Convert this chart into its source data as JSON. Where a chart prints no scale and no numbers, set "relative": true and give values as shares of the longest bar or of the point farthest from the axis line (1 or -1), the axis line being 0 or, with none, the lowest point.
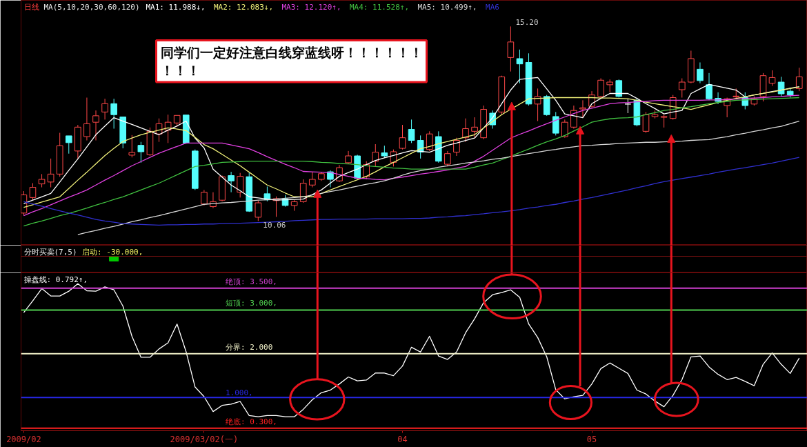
{
  "chart_data": [
    {
      "type": "candlestick",
      "title": "日线",
      "subtitle": "MA(5,10,20,30,60,120)",
      "categories": [
        "2009/02",
        null,
        null,
        null,
        null,
        null,
        null,
        null,
        null,
        null,
        null,
        null,
        null,
        null,
        null,
        null,
        null,
        null,
        null,
        null,
        "2009/03/02(一)",
        null,
        null,
        null,
        null,
        null,
        null,
        null,
        null,
        null,
        null,
        null,
        null,
        null,
        null,
        null,
        null,
        null,
        null,
        null,
        null,
        null,
        "04",
        null,
        null,
        null,
        null,
        null,
        null,
        null,
        null,
        null,
        null,
        null,
        null,
        null,
        null,
        null,
        null,
        null,
        null,
        null,
        null,
        "05",
        null,
        null,
        null,
        null,
        null,
        null,
        null,
        null,
        null,
        null,
        null,
        null,
        null,
        null,
        null,
        null,
        null,
        null,
        null,
        null,
        null,
        null,
        null
      ],
      "ohlc": [
        [
          10.27,
          10.85,
          10.2,
          10.75
        ],
        [
          10.68,
          11.06,
          10.61,
          10.95
        ],
        [
          11.04,
          11.3,
          10.95,
          11.16
        ],
        [
          11.09,
          11.71,
          10.95,
          11.3
        ],
        [
          11.3,
          12.39,
          11.23,
          12.05
        ],
        [
          12.31,
          12.31,
          11.84,
          12.13
        ],
        [
          11.91,
          12.6,
          11.71,
          12.54
        ],
        [
          12.29,
          13.32,
          12.19,
          12.63
        ],
        [
          12.67,
          12.98,
          12.19,
          12.84
        ],
        [
          12.94,
          13.29,
          12.74,
          13.16
        ],
        [
          13.16,
          13.29,
          12.5,
          12.87
        ],
        [
          12.81,
          12.81,
          11.98,
          12.12
        ],
        [
          11.8,
          12.33,
          11.74,
          11.87
        ],
        [
          12.06,
          12.15,
          11.6,
          11.89
        ],
        [
          11.81,
          12.53,
          11.78,
          12.43
        ],
        [
          12.36,
          12.77,
          12.15,
          12.63
        ],
        [
          12.46,
          12.87,
          12.12,
          12.67
        ],
        [
          12.65,
          12.85,
          12.55,
          12.85
        ],
        [
          12.86,
          12.86,
          12.1,
          12.12
        ],
        [
          11.91,
          11.95,
          10.88,
          10.92
        ],
        [
          10.51,
          10.88,
          10.47,
          10.82
        ],
        [
          10.44,
          10.82,
          10.4,
          10.57
        ],
        [
          10.61,
          11.26,
          10.58,
          11.23
        ],
        [
          11.26,
          11.36,
          10.82,
          11.12
        ],
        [
          10.82,
          11.33,
          10.68,
          11.24
        ],
        [
          11.23,
          11.33,
          10.3,
          10.32
        ],
        [
          10.16,
          10.6,
          10.06,
          10.54
        ],
        [
          10.78,
          10.97,
          10.58,
          10.62
        ],
        [
          10.6,
          10.71,
          10.17,
          10.65
        ],
        [
          10.64,
          10.75,
          10.44,
          10.47
        ],
        [
          10.47,
          10.61,
          10.33,
          10.57
        ],
        [
          10.57,
          11.16,
          10.54,
          11.06
        ],
        [
          11.01,
          11.36,
          10.95,
          11.16
        ],
        [
          11.16,
          11.36,
          11.12,
          11.31
        ],
        [
          11.36,
          11.4,
          10.95,
          11.16
        ],
        [
          11.12,
          11.54,
          11.09,
          11.47
        ],
        [
          11.6,
          11.91,
          11.57,
          11.78
        ],
        [
          11.78,
          11.81,
          11.16,
          11.19
        ],
        [
          11.23,
          11.64,
          11.16,
          11.55
        ],
        [
          11.64,
          12.09,
          11.5,
          11.88
        ],
        [
          11.86,
          12.05,
          11.74,
          11.78
        ],
        [
          11.61,
          11.95,
          11.5,
          11.89
        ],
        [
          11.98,
          12.6,
          11.95,
          12.26
        ],
        [
          12.48,
          12.74,
          12.12,
          12.19
        ],
        [
          12.19,
          12.32,
          11.71,
          11.88
        ],
        [
          11.95,
          12.43,
          11.91,
          12.36
        ],
        [
          12.29,
          12.43,
          11.6,
          11.64
        ],
        [
          11.56,
          11.91,
          11.5,
          11.84
        ],
        [
          11.88,
          12.26,
          11.78,
          12.19
        ],
        [
          12.26,
          12.77,
          12.15,
          12.5
        ],
        [
          12.43,
          12.8,
          12.26,
          12.54
        ],
        [
          12.26,
          13.11,
          12.22,
          13.01
        ],
        [
          12.91,
          12.98,
          12.5,
          12.6
        ],
        [
          12.94,
          13.9,
          12.87,
          13.87
        ],
        [
          14.38,
          15.2,
          14.01,
          14.79
        ],
        [
          14.35,
          14.59,
          13.7,
          14.21
        ],
        [
          14.25,
          14.49,
          13.11,
          13.15
        ],
        [
          13.15,
          13.56,
          12.7,
          13.35
        ],
        [
          13.35,
          13.39,
          12.84,
          12.87
        ],
        [
          12.82,
          12.94,
          12.32,
          12.38
        ],
        [
          12.29,
          12.74,
          12.26,
          12.67
        ],
        [
          12.54,
          13.11,
          12.5,
          12.98
        ],
        [
          13.02,
          13.25,
          12.8,
          13.05
        ],
        [
          13.09,
          13.49,
          13.05,
          13.39
        ],
        [
          13.35,
          13.83,
          13.29,
          13.78
        ],
        [
          13.66,
          13.8,
          13.46,
          13.73
        ],
        [
          13.77,
          13.8,
          13.32,
          13.35
        ],
        [
          13.15,
          13.29,
          12.91,
          13.15
        ],
        [
          13.25,
          13.29,
          12.56,
          12.6
        ],
        [
          12.43,
          12.94,
          12.39,
          12.87
        ],
        [
          12.82,
          12.98,
          12.77,
          12.87
        ],
        [
          12.8,
          12.87,
          12.53,
          12.82
        ],
        [
          12.77,
          13.39,
          12.74,
          13.32
        ],
        [
          13.53,
          13.83,
          13.32,
          13.73
        ],
        [
          13.73,
          14.56,
          13.7,
          14.35
        ],
        [
          14.07,
          14.25,
          13.7,
          13.77
        ],
        [
          13.66,
          13.97,
          13.25,
          13.29
        ],
        [
          13.3,
          13.46,
          13.15,
          13.22
        ],
        [
          13.11,
          13.32,
          12.8,
          13.29
        ],
        [
          13.34,
          13.56,
          13.29,
          13.36
        ],
        [
          13.32,
          13.46,
          13.01,
          13.11
        ],
        [
          13.15,
          13.35,
          13.11,
          13.29
        ],
        [
          13.35,
          13.97,
          13.22,
          13.9
        ],
        [
          13.7,
          14.04,
          13.63,
          13.85
        ],
        [
          13.73,
          13.87,
          13.35,
          13.42
        ],
        [
          13.49,
          13.56,
          13.32,
          13.39
        ],
        [
          13.56,
          14.11,
          13.49,
          13.87
        ]
      ],
      "colors": [
        "#ff4848",
        "#ff4848",
        "#ff4848",
        "#ff4848",
        "#ff4848",
        "#54fcfc",
        "#ff4848",
        "#ff4848",
        "#ff4848",
        "#ff4848",
        "#54fcfc",
        "#54fcfc",
        "#ff4848",
        "#54fcfc",
        "#ff4848",
        "#ff4848",
        "#ff4848",
        "#ff4848",
        "#54fcfc",
        "#54fcfc",
        "#ff4848",
        "#ff4848",
        "#ff4848",
        "#54fcfc",
        "#ff4848",
        "#54fcfc",
        "#ff4848",
        "#54fcfc",
        "#ff4848",
        "#54fcfc",
        "#ff4848",
        "#ff4848",
        "#ff4848",
        "#ff4848",
        "#54fcfc",
        "#ff4848",
        "#ff4848",
        "#54fcfc",
        "#ff4848",
        "#ff4848",
        "#54fcfc",
        "#ff4848",
        "#ff4848",
        "#54fcfc",
        "#54fcfc",
        "#ff4848",
        "#54fcfc",
        "#ff4848",
        "#ff4848",
        "#ff4848",
        "#ff4848",
        "#ff4848",
        "#54fcfc",
        "#ff4848",
        "#ff4848",
        "#54fcfc",
        "#54fcfc",
        "#ff4848",
        "#54fcfc",
        "#54fcfc",
        "#ff4848",
        "#ff4848",
        "#ff4848",
        "#ff4848",
        "#ff4848",
        "#ff4848",
        "#54fcfc",
        "#ffffff",
        "#54fcfc",
        "#ff4848",
        "#ff4848",
        "#ff4848",
        "#ff4848",
        "#ff4848",
        "#ff4848",
        "#54fcfc",
        "#54fcfc",
        "#54fcfc",
        "#ff4848",
        "#ff4848",
        "#54fcfc",
        "#ff4848",
        "#ff4848",
        "#ff4848",
        "#54fcfc",
        "#54fcfc",
        "#ff4848"
      ],
      "series": [
        {
          "name": "MA1: 11.988↓,",
          "type": "line",
          "color": "#ffffff",
          "values": [
            10.52,
            10.61,
            10.7,
            10.79,
            11.09,
            11.4,
            11.7,
            12.02,
            12.34,
            12.57,
            12.79,
            12.7,
            12.61,
            12.52,
            12.43,
            12.34,
            12.46,
            12.57,
            12.7,
            12.25,
            11.99,
            11.43,
            11.22,
            11.01,
            10.86,
            10.7,
            10.67,
            10.64,
            10.61,
            10.62,
            10.63,
            10.64,
            10.76,
            10.88,
            11.06,
            11.24,
            11.34,
            11.43,
            11.55,
            11.66,
            11.73,
            11.79,
            11.86,
            11.92,
            11.9,
            11.88,
            11.97,
            12.06,
            12.12,
            12.19,
            12.25,
            12.52,
            12.79,
            13.16,
            13.52,
            13.8,
            13.83,
            13.85,
            13.55,
            13.25,
            12.89,
            12.84,
            12.79,
            13.16,
            13.3,
            13.43,
            13.43,
            13.43,
            13.3,
            13.16,
            13.03,
            12.89,
            12.94,
            12.98,
            13.43,
            13.55,
            13.67,
            13.62,
            13.57,
            13.52,
            13.34,
            13.39,
            13.43,
            13.48,
            13.52,
            13.57,
            13.61
          ]
        },
        {
          "name": "MA2: 12.083↓,",
          "type": "line",
          "color": "#f0f07a",
          "values": [
            10.42,
            10.49,
            10.56,
            10.63,
            10.7,
            10.92,
            11.14,
            11.35,
            11.57,
            11.79,
            11.98,
            12.16,
            12.25,
            12.34,
            12.4,
            12.46,
            12.52,
            12.49,
            12.45,
            12.27,
            12.08,
            11.97,
            11.82,
            11.67,
            11.52,
            11.35,
            11.18,
            11.01,
            10.91,
            10.8,
            10.7,
            10.7,
            10.7,
            10.79,
            10.88,
            10.97,
            11.06,
            11.15,
            11.24,
            11.36,
            11.49,
            11.61,
            11.73,
            11.85,
            11.97,
            12.03,
            12.1,
            12.16,
            12.22,
            12.28,
            12.34,
            12.52,
            12.69,
            12.87,
            13.01,
            13.15,
            13.29,
            13.3,
            13.31,
            13.32,
            13.32,
            13.32,
            13.32,
            13.32,
            13.31,
            13.31,
            13.3,
            13.29,
            13.25,
            13.2,
            13.16,
            13.12,
            13.08,
            13.05,
            13.01,
            13.07,
            13.13,
            13.19,
            13.25,
            13.3,
            13.34,
            13.39,
            13.43,
            13.47,
            13.52,
            13.56,
            13.6
          ]
        },
        {
          "name": "MA3: 12.120↑,",
          "type": "line",
          "color": "#e040e0",
          "values": [
            10.2,
            10.3,
            10.39,
            10.49,
            10.59,
            10.69,
            10.78,
            10.88,
            11.01,
            11.14,
            11.26,
            11.39,
            11.52,
            11.63,
            11.74,
            11.85,
            11.94,
            12.03,
            12.12,
            12.12,
            12.12,
            12.12,
            12.12,
            12.07,
            12.02,
            11.97,
            11.87,
            11.76,
            11.66,
            11.56,
            11.47,
            11.37,
            11.36,
            11.35,
            11.34,
            11.29,
            11.24,
            11.19,
            11.18,
            11.16,
            11.15,
            11.19,
            11.22,
            11.26,
            11.3,
            11.33,
            11.37,
            11.41,
            11.46,
            11.5,
            11.64,
            11.77,
            11.93,
            12.09,
            12.25,
            12.35,
            12.44,
            12.54,
            12.63,
            12.72,
            12.81,
            12.9,
            12.98,
            13.04,
            13.1,
            13.16,
            13.18,
            13.19,
            13.21,
            13.22,
            13.24,
            13.25,
            13.25,
            13.25,
            13.25,
            13.25,
            13.26,
            13.26,
            13.27,
            13.28,
            13.3,
            13.31,
            13.32,
            13.34,
            13.35,
            13.37,
            13.38
          ]
        },
        {
          "name": "MA4: 11.528↑,",
          "type": "line",
          "color": "#40c040",
          "values": [
            9.93,
            10.0,
            10.06,
            10.13,
            10.2,
            10.26,
            10.33,
            10.4,
            10.48,
            10.55,
            10.63,
            10.7,
            10.79,
            10.88,
            10.97,
            11.06,
            11.17,
            11.28,
            11.39,
            11.5,
            11.53,
            11.57,
            11.61,
            11.62,
            11.63,
            11.64,
            11.64,
            11.64,
            11.64,
            11.64,
            11.64,
            11.64,
            11.63,
            11.61,
            11.6,
            11.58,
            11.57,
            11.55,
            11.52,
            11.5,
            11.48,
            11.46,
            11.45,
            11.43,
            11.43,
            11.43,
            11.43,
            11.43,
            11.43,
            11.43,
            11.48,
            11.54,
            11.59,
            11.68,
            11.77,
            11.87,
            11.96,
            12.06,
            12.15,
            12.23,
            12.32,
            12.44,
            12.55,
            12.67,
            12.72,
            12.76,
            12.78,
            12.79,
            12.81,
            12.87,
            12.92,
            12.98,
            13.01,
            13.05,
            13.08,
            13.12,
            13.16,
            13.19,
            13.22,
            13.25,
            13.26,
            13.27,
            13.28,
            13.29,
            13.3,
            13.31,
            13.32
          ]
        },
        {
          "name": "MA5: 10.499↑,",
          "type": "line",
          "color": "#d8d8d8",
          "values": [
            null,
            null,
            null,
            null,
            null,
            null,
            9.7,
            9.76,
            9.81,
            9.87,
            9.92,
            9.98,
            10.04,
            10.09,
            10.15,
            10.2,
            10.26,
            10.32,
            10.38,
            10.44,
            10.5,
            10.52,
            10.54,
            10.55,
            10.57,
            10.59,
            10.61,
            10.62,
            10.64,
            10.66,
            10.68,
            10.7,
            10.75,
            10.79,
            10.84,
            10.88,
            10.93,
            10.98,
            11.03,
            11.07,
            11.12,
            11.19,
            11.27,
            11.34,
            11.39,
            11.43,
            11.48,
            11.52,
            11.55,
            11.59,
            11.62,
            11.65,
            11.69,
            11.72,
            11.76,
            11.8,
            11.84,
            11.88,
            11.92,
            11.95,
            11.99,
            12.02,
            12.05,
            12.06,
            12.08,
            12.09,
            12.11,
            12.12,
            12.13,
            12.14,
            12.14,
            12.15,
            12.16,
            12.17,
            12.19,
            12.2,
            12.21,
            12.25,
            12.29,
            12.34,
            12.38,
            12.43,
            12.47,
            12.52,
            12.56,
            12.63,
            12.7
          ]
        },
        {
          "name": "MA6",
          "type": "line",
          "color": "#3030d0",
          "values": [
            10.57,
            10.51,
            10.45,
            10.39,
            10.33,
            10.27,
            10.22,
            10.16,
            10.1,
            10.06,
            10.03,
            9.99,
            9.98,
            9.97,
            9.96,
            9.95,
            9.96,
            9.96,
            9.97,
            9.97,
            9.98,
            9.98,
            9.99,
            10.0,
            10.0,
            10.01,
            10.02,
            10.03,
            10.04,
            10.05,
            10.07,
            10.08,
            10.09,
            10.1,
            10.1,
            10.11,
            10.11,
            10.11,
            10.11,
            10.12,
            10.12,
            10.12,
            10.12,
            10.13,
            10.13,
            10.14,
            10.16,
            10.17,
            10.19,
            10.2,
            10.23,
            10.25,
            10.28,
            10.3,
            10.33,
            10.36,
            10.4,
            10.43,
            10.47,
            10.5,
            10.55,
            10.59,
            10.64,
            10.68,
            10.73,
            10.78,
            10.83,
            10.88,
            10.94,
            10.99,
            11.05,
            11.1,
            11.14,
            11.18,
            11.22,
            11.26,
            11.3,
            11.35,
            11.39,
            11.43,
            11.47,
            11.51,
            11.55,
            11.59,
            11.64,
            11.69,
            11.74
          ]
        }
      ],
      "annotations": [
        "同学们一定好注意白线穿蓝线呀！！！！！！！！！",
        "15.20",
        "10.06"
      ],
      "ylim": [
        9.42,
        15.89
      ],
      "tick_labels": false
    },
    {
      "type": "bar",
      "title": "分时买卖(7,5)",
      "subtitle": "启动: -30.000,",
      "categories": [
        "2009/02",
        null,
        null,
        null,
        null,
        null,
        null,
        null,
        null,
        null,
        null,
        null,
        null,
        null,
        null,
        null,
        null,
        null,
        null,
        null,
        "2009/03/02(一)",
        null,
        null,
        null,
        null,
        null,
        null,
        null,
        null,
        null,
        null,
        null,
        null,
        null,
        null,
        null,
        null,
        null,
        null,
        null,
        null,
        null,
        "04",
        null,
        null,
        null,
        null,
        null,
        null,
        null,
        null,
        null,
        null,
        null,
        null,
        null,
        null,
        null,
        null,
        null,
        null,
        null,
        null,
        "05",
        null,
        null,
        null,
        null,
        null,
        null,
        null,
        null,
        null,
        null,
        null,
        null,
        null,
        null,
        null,
        null,
        null,
        null,
        null,
        null,
        null,
        null,
        null
      ],
      "values": [
        null,
        null,
        null,
        null,
        null,
        null,
        null,
        null,
        null,
        null,
        -1,
        null,
        null,
        null,
        null,
        null,
        null,
        null,
        null,
        null,
        null,
        null,
        null,
        null,
        null,
        null,
        null,
        null,
        null,
        null,
        null,
        null,
        null,
        null,
        null,
        null,
        null,
        null,
        null,
        null,
        null,
        null,
        null,
        null,
        null,
        null,
        null,
        null,
        null,
        null,
        null,
        null,
        null,
        null,
        null,
        null,
        null,
        null,
        null,
        null,
        null,
        null,
        null,
        null,
        null,
        null,
        null,
        null,
        null,
        null,
        null,
        null,
        null,
        null,
        null,
        null,
        null,
        null,
        null,
        null,
        null,
        null,
        null,
        null,
        null,
        null,
        null
      ],
      "color": "#00c800",
      "relative": true,
      "tick_labels": false
    },
    {
      "type": "line",
      "categories": [
        "2009/02",
        null,
        null,
        null,
        null,
        null,
        null,
        null,
        null,
        null,
        null,
        null,
        null,
        null,
        null,
        null,
        null,
        null,
        null,
        null,
        "2009/03/02(一)",
        null,
        null,
        null,
        null,
        null,
        null,
        null,
        null,
        null,
        null,
        null,
        null,
        null,
        null,
        null,
        null,
        null,
        null,
        null,
        null,
        null,
        "04",
        null,
        null,
        null,
        null,
        null,
        null,
        null,
        null,
        null,
        null,
        null,
        null,
        null,
        null,
        null,
        null,
        null,
        null,
        null,
        null,
        "05",
        null,
        null,
        null,
        null,
        null,
        null,
        null,
        null,
        null,
        null,
        null,
        null,
        null,
        null,
        null,
        null,
        null,
        null,
        null,
        null,
        null,
        null,
        null
      ],
      "series": [
        {
          "name": "操盘线: 0.792↑,",
          "color": "#ffffff",
          "values": [
            2.94,
            3.21,
            3.49,
            3.32,
            3.32,
            3.43,
            3.6,
            3.44,
            3.43,
            3.53,
            3.46,
            3.09,
            2.4,
            1.92,
            1.92,
            2.11,
            2.25,
            2.68,
            2.05,
            1.24,
            1.02,
            0.68,
            0.82,
            0.85,
            0.91,
            0.59,
            0.56,
            0.59,
            0.59,
            0.56,
            0.56,
            0.73,
            0.95,
            1.11,
            1.17,
            1.31,
            1.47,
            1.38,
            1.4,
            1.56,
            1.56,
            1.5,
            1.72,
            2.15,
            2.04,
            2.4,
            1.95,
            1.87,
            2.04,
            2.48,
            2.8,
            3.17,
            3.35,
            3.4,
            3.46,
            3.29,
            2.68,
            2.37,
            1.93,
            1.18,
            0.97,
            1.02,
            1.05,
            1.31,
            1.66,
            1.79,
            1.67,
            1.55,
            1.17,
            1.08,
            0.92,
            0.79,
            1.05,
            1.41,
            1.93,
            1.95,
            1.7,
            1.53,
            1.41,
            1.46,
            1.37,
            1.27,
            1.76,
            2.02,
            1.76,
            1.55,
            1.9
          ]
        }
      ],
      "ref_lines": [
        {
          "axis": "y",
          "value": 0.3,
          "label": "绝底: 0.300,",
          "color": "#ff2020"
        },
        {
          "axis": "y",
          "value": 1.0,
          "label": "1.000,",
          "color": "#2828e8"
        },
        {
          "axis": "y",
          "value": 3.0,
          "label": "短顶: 3.000,",
          "color": "#50d050"
        },
        {
          "axis": "y",
          "value": 3.5,
          "label": "绝顶: 3.500,",
          "color": "#d040d0"
        },
        {
          "axis": "y",
          "value": 2.0,
          "label": "分界: 2.000",
          "color": "#f0f0c8"
        }
      ],
      "ylim": [
        0.24,
        3.85
      ],
      "tick_labels": "x"
    }
  ]
}
